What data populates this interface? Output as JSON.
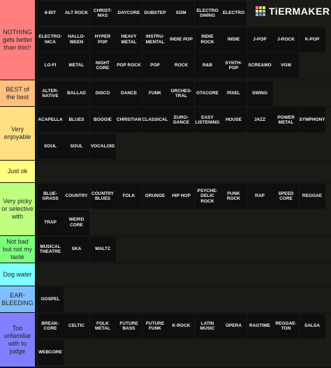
{
  "logo": {
    "text": "TiERMAKER",
    "colors": [
      "#ff7f7f",
      "#ffbf7f",
      "#ffdf7f",
      "#ffff7f",
      "#bfff7f",
      "#7fff7f",
      "#7fbfff",
      "#7f7fff",
      "#ff7fff"
    ]
  },
  "tiers": [
    {
      "label": "NOTHING gets better than this!!",
      "color": "#ff7f7f",
      "items": [
        "8-BIT",
        "ALT ROCK",
        "CHRIST-\nMAS",
        "DAYCORE",
        "DUBSTEP",
        "EDM",
        "ELECTRO\nSWING",
        "ELECTRO",
        "",
        "",
        "ELECTRO-\nNICA",
        "HALLO-\nWEEN",
        "HYPER\nPOP",
        "HEAVY\nMETAL",
        "INSTRU-\nMENTAL",
        "INDIE POP",
        "INDIE\nROCK",
        "INDIE",
        "J-POP",
        "J-ROCK",
        "K-POP",
        "LO-FI",
        "METAL",
        "NIGHT\nCORE",
        "POP ROCK",
        "POP",
        "ROCK",
        "R&B",
        "SYNTH-\nPOP",
        "SCREAMO",
        "VGM"
      ]
    },
    {
      "label": "BEST of the best",
      "color": "#ffbf7f",
      "items": [
        "ALTER-\nNATIVE",
        "BALLAD",
        "DISCO",
        "DANCE",
        "FUNK",
        "ORCHES-\nTRAL",
        "OTACORE",
        "PIXEL",
        "SWING"
      ]
    },
    {
      "label": "Very enjoyable",
      "color": "#ffdf7f",
      "items": [
        "ACAPELLA",
        "BLUES",
        "BOOGIE",
        "CHRISTIAN",
        "CLASSICAL",
        "EURO-\nDANCE",
        "EASY\nLISTENING",
        "HOUSE",
        "JAZZ",
        "POWER\nMETAL",
        "SYMPHONY",
        "SOUL",
        "SOUL",
        "VOCALOID"
      ]
    },
    {
      "label": "Just ok",
      "color": "#ffff7f",
      "items": []
    },
    {
      "label": "Very picky or selective with",
      "color": "#bfff7f",
      "items": [
        "BLUE-\nGRASS",
        "COUNTRY",
        "COUNTRY\nBLUES",
        "FOLK",
        "GRUNGE",
        "HIP HOP",
        "PSYCHE-\nDELIC\nROCK",
        "PUNK\nROCK",
        "RAP",
        "SPEED\nCORE",
        "REGGAE",
        "TRAP",
        "WEIRD\nCORE"
      ]
    },
    {
      "label": "Not bad but not my taste",
      "color": "#7fff7f",
      "items": [
        "MUSICAL\nTHEATRE",
        "SKA",
        "WALTZ"
      ]
    },
    {
      "label": "Dog water",
      "color": "#7fffff",
      "items": []
    },
    {
      "label": "EAR-\nBLEEDING",
      "color": "#7fbfff",
      "items": [
        "GOSPEL"
      ]
    },
    {
      "label": "Too unfamiliar with to judge",
      "color": "#7f7fff",
      "items": [
        "BREAK-\nCORE",
        "CELTIC",
        "FOLK\nMETAL",
        "FUTURE\nBASS",
        "FUTURE\nFUNK",
        "K-ROCK",
        "LATIN\nMUSIC",
        "OPERA",
        "RAGTIME",
        "REGGAE-\nTON",
        "SALSA",
        "WEBCORE"
      ]
    }
  ]
}
